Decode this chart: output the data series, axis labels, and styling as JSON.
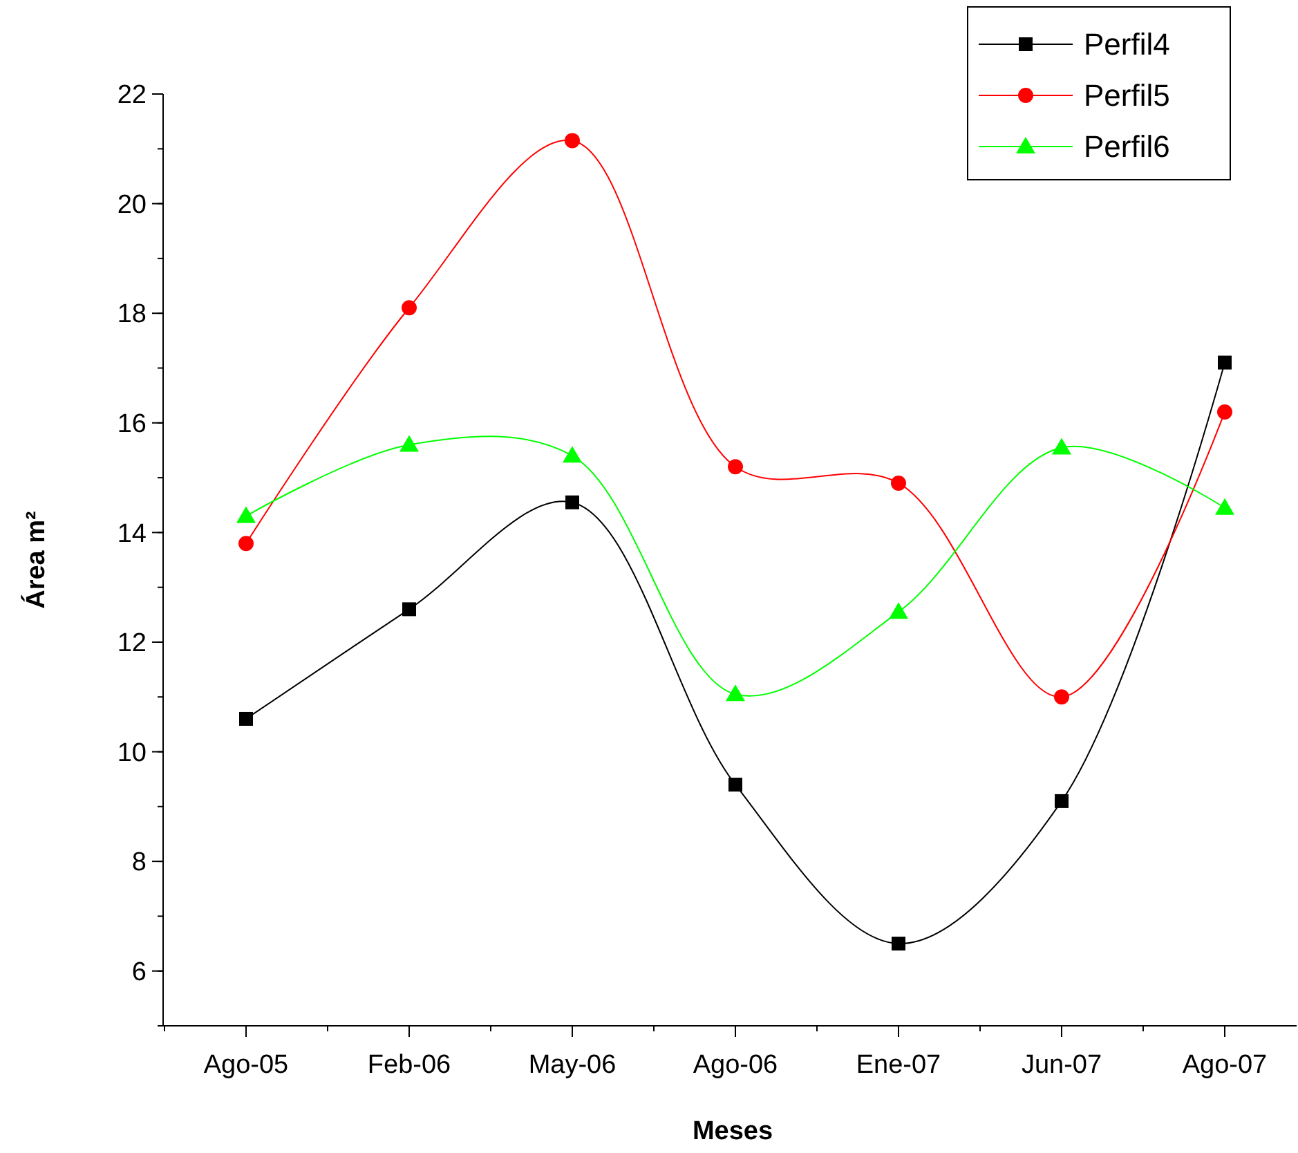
{
  "chart_data": {
    "type": "line",
    "xlabel": "Meses",
    "ylabel": "Área m²",
    "categories": [
      "Ago-05",
      "Feb-06",
      "May-06",
      "Ago-06",
      "Ene-07",
      "Jun-07",
      "Ago-07"
    ],
    "ylim": [
      5,
      22
    ],
    "yticks": [
      6,
      8,
      10,
      12,
      14,
      16,
      18,
      20,
      22
    ],
    "legend": "top right",
    "grid": false,
    "series": [
      {
        "name": "Perfil4",
        "color": "#000000",
        "marker": "square",
        "values": [
          10.6,
          12.6,
          14.55,
          9.4,
          6.5,
          9.1,
          17.1
        ]
      },
      {
        "name": "Perfil5",
        "color": "#ff0000",
        "marker": "circle",
        "values": [
          13.8,
          18.1,
          21.15,
          15.2,
          14.9,
          11.0,
          16.2
        ]
      },
      {
        "name": "Perfil6",
        "color": "#00ff00",
        "marker": "triangle",
        "values": [
          14.3,
          15.6,
          15.4,
          11.05,
          12.55,
          15.55,
          14.45
        ]
      }
    ]
  }
}
